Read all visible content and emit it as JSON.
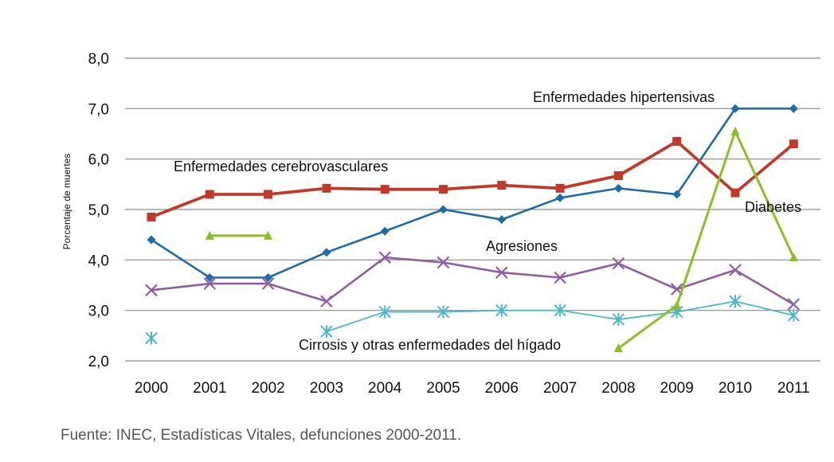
{
  "chart_data": {
    "type": "line",
    "title": "",
    "xlabel": "",
    "ylabel": "Porcentaje de muertes",
    "ylim": [
      2.0,
      8.0
    ],
    "yticks": [
      "2,0",
      "3,0",
      "4,0",
      "5,0",
      "6,0",
      "7,0",
      "8,0"
    ],
    "grid": true,
    "categories": [
      "2000",
      "2001",
      "2002",
      "2003",
      "2004",
      "2005",
      "2006",
      "2007",
      "2008",
      "2009",
      "2010",
      "2011"
    ],
    "series": [
      {
        "name": "Enfermedades hipertensivas",
        "color": "#1f6aa8",
        "marker": "diamond",
        "values": [
          4.4,
          3.65,
          3.65,
          4.15,
          4.57,
          5.0,
          4.8,
          5.23,
          5.42,
          5.3,
          7.0,
          7.0
        ]
      },
      {
        "name": "Enfermedades cerebrovasculares",
        "color": "#c0392b",
        "marker": "square",
        "values": [
          4.85,
          5.3,
          5.3,
          5.42,
          5.4,
          5.4,
          5.48,
          5.42,
          5.67,
          6.35,
          5.33,
          6.3
        ]
      },
      {
        "name": "Agresiones",
        "color": "#8e5ea2",
        "marker": "x",
        "values": [
          3.4,
          3.53,
          3.53,
          3.18,
          4.05,
          3.95,
          3.75,
          3.65,
          3.93,
          3.42,
          3.8,
          3.12
        ]
      },
      {
        "name": "Cirrosis y otras enfermedades del hígado",
        "color": "#4bb8c8",
        "marker": "star",
        "values": [
          2.45,
          null,
          null,
          2.58,
          2.97,
          2.97,
          3.0,
          3.0,
          2.82,
          2.97,
          3.18,
          2.9
        ]
      },
      {
        "name": "Diabetes",
        "color": "#8cbf26",
        "marker": "triangle",
        "values": [
          null,
          4.48,
          4.48,
          null,
          null,
          null,
          null,
          null,
          2.25,
          3.1,
          6.55,
          4.05
        ]
      }
    ]
  },
  "source": "Fuente: INEC, Estadísticas Vitales, defunciones 2000-2011."
}
